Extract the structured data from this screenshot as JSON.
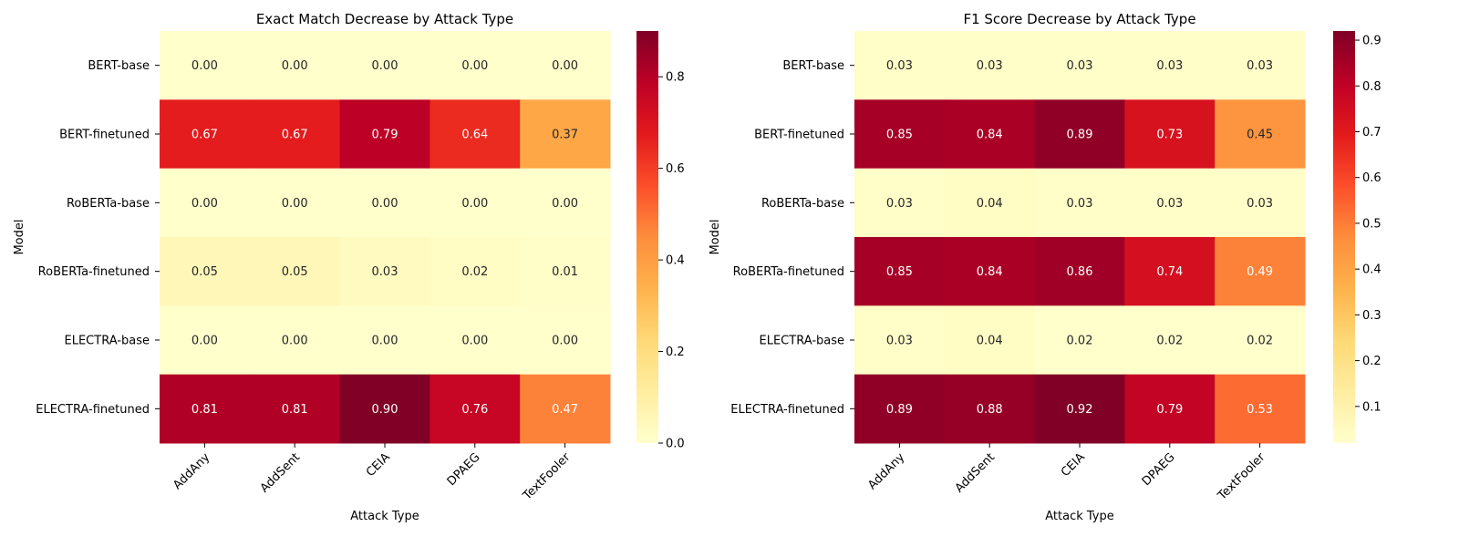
{
  "chart_data": [
    {
      "type": "heatmap",
      "title": "Exact Match Decrease by Attack Type",
      "xlabel": "Attack Type",
      "ylabel": "Model",
      "x": [
        "AddAny",
        "AddSent",
        "CEIA",
        "DPAEG",
        "TextFooler"
      ],
      "y": [
        "BERT-base",
        "BERT-finetuned",
        "RoBERTa-base",
        "RoBERTa-finetuned",
        "ELECTRA-base",
        "ELECTRA-finetuned"
      ],
      "values": [
        [
          0.0,
          0.0,
          0.0,
          0.0,
          0.0
        ],
        [
          0.67,
          0.67,
          0.79,
          0.64,
          0.37
        ],
        [
          0.0,
          0.0,
          0.0,
          0.0,
          0.0
        ],
        [
          0.05,
          0.05,
          0.03,
          0.02,
          0.01
        ],
        [
          0.0,
          0.0,
          0.0,
          0.0,
          0.0
        ],
        [
          0.81,
          0.81,
          0.9,
          0.76,
          0.47
        ]
      ],
      "cell_labels": [
        [
          "0.00",
          "0.00",
          "0.00",
          "0.00",
          "0.00"
        ],
        [
          "0.67",
          "0.67",
          "0.79",
          "0.64",
          "0.37"
        ],
        [
          "0.00",
          "0.00",
          "0.00",
          "0.00",
          "0.00"
        ],
        [
          "0.05",
          "0.05",
          "0.03",
          "0.02",
          "0.01"
        ],
        [
          "0.00",
          "0.00",
          "0.00",
          "0.00",
          "0.00"
        ],
        [
          "0.81",
          "0.81",
          "0.90",
          "0.76",
          "0.47"
        ]
      ],
      "colormap": "YlOrRd",
      "colorbar_range": [
        0.0,
        0.9
      ],
      "colorbar_ticks": [
        0.0,
        0.2,
        0.4,
        0.6,
        0.8
      ],
      "colorbar_tick_labels": [
        "0.0",
        "0.2",
        "0.4",
        "0.6",
        "0.8"
      ]
    },
    {
      "type": "heatmap",
      "title": "F1 Score Decrease by Attack Type",
      "xlabel": "Attack Type",
      "ylabel": "Model",
      "x": [
        "AddAny",
        "AddSent",
        "CEIA",
        "DPAEG",
        "TextFooler"
      ],
      "y": [
        "BERT-base",
        "BERT-finetuned",
        "RoBERTa-base",
        "RoBERTa-finetuned",
        "ELECTRA-base",
        "ELECTRA-finetuned"
      ],
      "values": [
        [
          0.03,
          0.03,
          0.03,
          0.03,
          0.03
        ],
        [
          0.85,
          0.84,
          0.89,
          0.73,
          0.45
        ],
        [
          0.03,
          0.04,
          0.03,
          0.03,
          0.03
        ],
        [
          0.85,
          0.84,
          0.86,
          0.74,
          0.49
        ],
        [
          0.03,
          0.04,
          0.02,
          0.02,
          0.02
        ],
        [
          0.89,
          0.88,
          0.92,
          0.79,
          0.53
        ]
      ],
      "cell_labels": [
        [
          "0.03",
          "0.03",
          "0.03",
          "0.03",
          "0.03"
        ],
        [
          "0.85",
          "0.84",
          "0.89",
          "0.73",
          "0.45"
        ],
        [
          "0.03",
          "0.04",
          "0.03",
          "0.03",
          "0.03"
        ],
        [
          "0.85",
          "0.84",
          "0.86",
          "0.74",
          "0.49"
        ],
        [
          "0.03",
          "0.04",
          "0.02",
          "0.02",
          "0.02"
        ],
        [
          "0.89",
          "0.88",
          "0.92",
          "0.79",
          "0.53"
        ]
      ],
      "colormap": "YlOrRd",
      "colorbar_range": [
        0.02,
        0.92
      ],
      "colorbar_ticks": [
        0.1,
        0.2,
        0.3,
        0.4,
        0.5,
        0.6,
        0.7,
        0.8,
        0.9
      ],
      "colorbar_tick_labels": [
        "0.1",
        "0.2",
        "0.3",
        "0.4",
        "0.5",
        "0.6",
        "0.7",
        "0.8",
        "0.9"
      ]
    }
  ]
}
